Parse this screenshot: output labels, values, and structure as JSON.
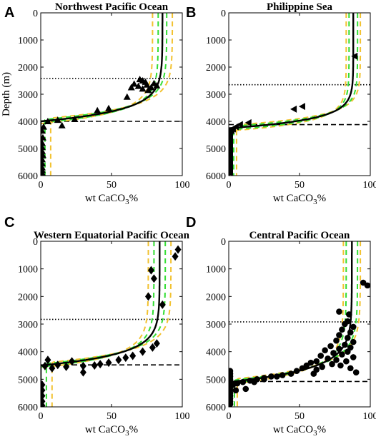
{
  "colors": {
    "fit": "#000000",
    "green_band": "#33dd33",
    "yellow_band": "#f2c230",
    "markers": "#000000"
  },
  "chart_data": [
    {
      "type": "scatter",
      "panel": "A",
      "title": "Northwest Pacific Ocean",
      "xlabel": "wt CaCO",
      "xlabel_sub": "3",
      "xlabel_suffix": "%",
      "ylabel": "Depth (m)",
      "xlim": [
        0,
        100
      ],
      "ylim": [
        6000,
        0
      ],
      "xticks": [
        "0",
        "50",
        "100"
      ],
      "yticks": [
        "0",
        "1000",
        "2000",
        "3000",
        "4000",
        "5000",
        "6000"
      ],
      "marker": "triangle",
      "dotted_line_depth": 2420,
      "dashed_line_depth": 4000,
      "model": {
        "top": 86,
        "bottom": 0,
        "ccd": 4000,
        "lyso": 2420,
        "scale": 420
      },
      "band_green": 3,
      "band_yellow": 7,
      "points": [
        [
          70,
          2450
        ],
        [
          72,
          2500
        ],
        [
          74,
          2550
        ],
        [
          80,
          2600
        ],
        [
          66,
          2620
        ],
        [
          75,
          2650
        ],
        [
          82,
          2680
        ],
        [
          69,
          2700
        ],
        [
          78,
          2750
        ],
        [
          64,
          2750
        ],
        [
          72,
          2800
        ],
        [
          76,
          2850
        ],
        [
          61,
          3100
        ],
        [
          48,
          3520
        ],
        [
          40,
          3600
        ],
        [
          24,
          3920
        ],
        [
          12,
          3950
        ],
        [
          5,
          4000
        ],
        [
          15,
          4150
        ],
        [
          2,
          4200
        ],
        [
          1,
          4350
        ],
        [
          1.5,
          4600
        ],
        [
          1,
          4800
        ],
        [
          1,
          4950
        ],
        [
          1,
          5100
        ],
        [
          1.5,
          5250
        ],
        [
          1,
          5400
        ],
        [
          1,
          5550
        ],
        [
          1,
          5700
        ],
        [
          1,
          5800
        ],
        [
          1,
          5900
        ]
      ]
    },
    {
      "type": "scatter",
      "panel": "B",
      "title": "Philippine Sea",
      "xlabel": "wt CaCO",
      "xlabel_sub": "3",
      "xlabel_suffix": "%",
      "ylabel": "",
      "xlim": [
        0,
        100
      ],
      "ylim": [
        6000,
        0
      ],
      "xticks": [
        "0",
        "50",
        "100"
      ],
      "yticks": [
        "0",
        "1000",
        "2000",
        "3000",
        "4000",
        "5000",
        "6000"
      ],
      "marker": "left-triangle",
      "dotted_line_depth": 2650,
      "dashed_line_depth": 4120,
      "model": {
        "top": 88,
        "bottom": 0.5,
        "ccd": 4250,
        "lyso": 2650,
        "scale": 330
      },
      "band_green": 3,
      "band_yellow": 5,
      "points": [
        [
          89,
          1600
        ],
        [
          52,
          3450
        ],
        [
          46,
          3550
        ],
        [
          14,
          4050
        ],
        [
          8,
          4120
        ],
        [
          5,
          4200
        ],
        [
          3,
          4280
        ],
        [
          2,
          4350
        ],
        [
          1,
          4450
        ],
        [
          1,
          4600
        ],
        [
          1,
          4750
        ],
        [
          1,
          4900
        ],
        [
          1,
          5050
        ],
        [
          1,
          5200
        ],
        [
          1,
          5350
        ],
        [
          1,
          5500
        ],
        [
          1,
          5650
        ],
        [
          1,
          5800
        ],
        [
          1,
          5900
        ]
      ]
    },
    {
      "type": "scatter",
      "panel": "C",
      "title": "Western Equatorial Pacific Ocean",
      "xlabel": "wt CaCO",
      "xlabel_sub": "3",
      "xlabel_suffix": "%",
      "ylabel": "",
      "xlim": [
        0,
        100
      ],
      "ylim": [
        6000,
        0
      ],
      "xticks": [
        "0",
        "50",
        "100"
      ],
      "yticks": [
        "0",
        "1000",
        "2000",
        "3000",
        "4000",
        "5000",
        "6000"
      ],
      "marker": "diamond",
      "dotted_line_depth": 2830,
      "dashed_line_depth": 4480,
      "model": {
        "top": 84,
        "bottom": 0,
        "ccd": 4500,
        "lyso": 2830,
        "scale": 420
      },
      "band_green": 4,
      "band_yellow": 8,
      "points": [
        [
          97,
          300
        ],
        [
          95,
          550
        ],
        [
          78,
          1050
        ],
        [
          80,
          1350
        ],
        [
          76,
          2000
        ],
        [
          86,
          2300
        ],
        [
          82,
          3700
        ],
        [
          79,
          3850
        ],
        [
          72,
          4000
        ],
        [
          65,
          4150
        ],
        [
          60,
          4220
        ],
        [
          55,
          4300
        ],
        [
          48,
          4400
        ],
        [
          42,
          4450
        ],
        [
          38,
          4500
        ],
        [
          30,
          4520
        ],
        [
          22,
          4350
        ],
        [
          18,
          4550
        ],
        [
          12,
          4480
        ],
        [
          8,
          4600
        ],
        [
          5,
          4300
        ],
        [
          3,
          4520
        ],
        [
          30,
          4750
        ],
        [
          1,
          5200
        ],
        [
          1,
          5400
        ],
        [
          1,
          5600
        ],
        [
          1,
          5800
        ],
        [
          1,
          5950
        ]
      ]
    },
    {
      "type": "scatter",
      "panel": "D",
      "title": "Central Pacific Ocean",
      "xlabel": "wt CaCO",
      "xlabel_sub": "3",
      "xlabel_suffix": "%",
      "ylabel": "",
      "xlim": [
        0,
        100
      ],
      "ylim": [
        6000,
        0
      ],
      "xticks": [
        "0",
        "50",
        "100"
      ],
      "yticks": [
        "0",
        "1000",
        "2000",
        "3000",
        "4000",
        "5000",
        "6000"
      ],
      "marker": "circle",
      "dotted_line_depth": 2920,
      "dashed_line_depth": 5080,
      "model": {
        "top": 87,
        "bottom": 0,
        "ccd": 5100,
        "lyso": 2920,
        "scale": 480
      },
      "band_green": 4,
      "band_yellow": 6,
      "points": [
        [
          95,
          1500
        ],
        [
          98,
          1600
        ],
        [
          78,
          2550
        ],
        [
          85,
          2650
        ],
        [
          84,
          2900
        ],
        [
          82,
          3000
        ],
        [
          88,
          3100
        ],
        [
          80,
          3200
        ],
        [
          86,
          3300
        ],
        [
          78,
          3400
        ],
        [
          84,
          3500
        ],
        [
          76,
          3600
        ],
        [
          88,
          3650
        ],
        [
          82,
          3750
        ],
        [
          72,
          3800
        ],
        [
          86,
          3850
        ],
        [
          78,
          3900
        ],
        [
          68,
          3950
        ],
        [
          84,
          4000
        ],
        [
          74,
          4050
        ],
        [
          80,
          4100
        ],
        [
          65,
          4150
        ],
        [
          88,
          4200
        ],
        [
          70,
          4250
        ],
        [
          76,
          4300
        ],
        [
          62,
          4350
        ],
        [
          83,
          4350
        ],
        [
          58,
          4400
        ],
        [
          73,
          4450
        ],
        [
          55,
          4500
        ],
        [
          79,
          4500
        ],
        [
          66,
          4550
        ],
        [
          52,
          4600
        ],
        [
          86,
          4600
        ],
        [
          62,
          4650
        ],
        [
          48,
          4700
        ],
        [
          90,
          4750
        ],
        [
          44,
          4800
        ],
        [
          60,
          4800
        ],
        [
          38,
          4850
        ],
        [
          30,
          4900
        ],
        [
          25,
          4950
        ],
        [
          20,
          5000
        ],
        [
          15,
          5050
        ],
        [
          10,
          5100
        ],
        [
          6,
          5150
        ],
        [
          3,
          5200
        ],
        [
          12,
          5350
        ],
        [
          5,
          5400
        ],
        [
          1,
          4700
        ],
        [
          1,
          4800
        ],
        [
          1,
          4900
        ],
        [
          1,
          5000
        ],
        [
          1,
          5100
        ],
        [
          1,
          5200
        ],
        [
          1,
          5300
        ],
        [
          1,
          5400
        ],
        [
          1,
          5500
        ],
        [
          1,
          5600
        ],
        [
          1,
          5700
        ],
        [
          1,
          5800
        ],
        [
          1,
          5900
        ],
        [
          25,
          5000
        ],
        [
          18,
          5100
        ],
        [
          34,
          4900
        ]
      ]
    }
  ]
}
